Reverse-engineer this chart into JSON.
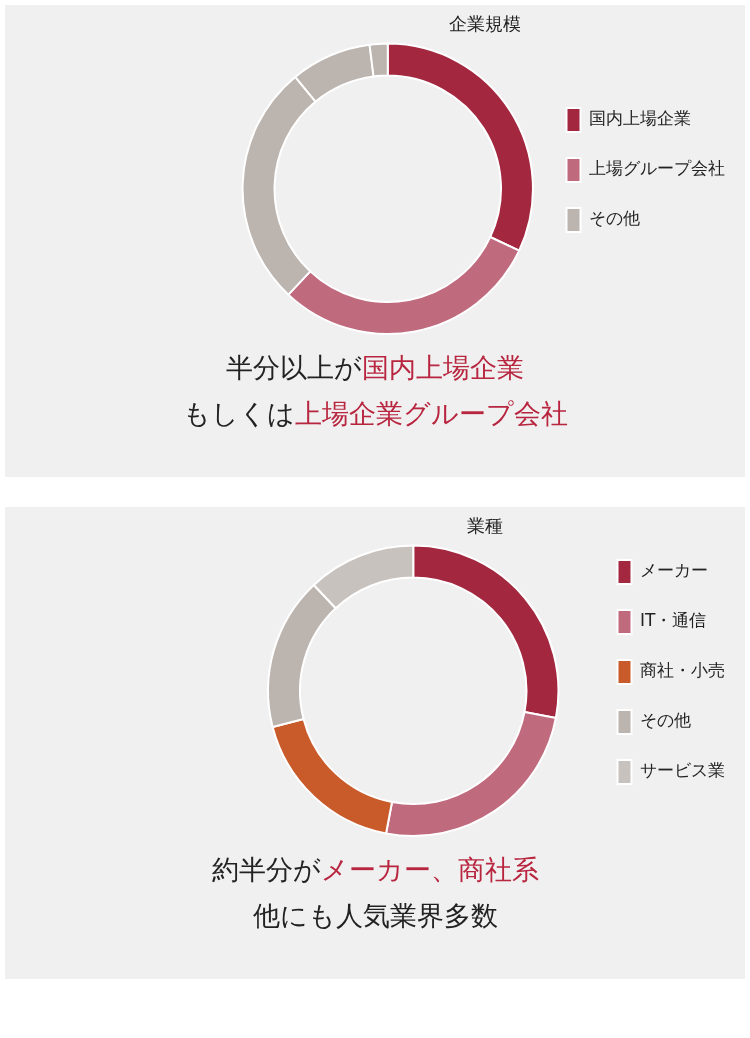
{
  "chart_data": [
    {
      "type": "donut",
      "title": "企業規模",
      "categories": [
        "国内上場企業",
        "上場グループ会社",
        "その他",
        null,
        null
      ],
      "values": [
        32,
        30,
        27,
        9,
        2
      ],
      "colors": [
        "#a3283f",
        "#c06a7e",
        "#bcb4af",
        "#bcb4af",
        "#bcb4af"
      ],
      "legend": "right",
      "annotations": [
        "半分以上が",
        "国内上場企業",
        "もしくは",
        "上場企業グループ会社"
      ]
    },
    {
      "type": "donut",
      "title": "業種",
      "categories": [
        "メーカー",
        "IT・通信",
        "商社・小売",
        "その他",
        "サービス業"
      ],
      "values": [
        28,
        25,
        18,
        17,
        12
      ],
      "colors": [
        "#a3283f",
        "#c06a7e",
        "#c95a2a",
        "#bcb4af",
        "#c8c2be"
      ],
      "legend": "right",
      "annotations": [
        "約半分が",
        "メーカー、商社系",
        "他にも人気業界多数"
      ]
    }
  ]
}
